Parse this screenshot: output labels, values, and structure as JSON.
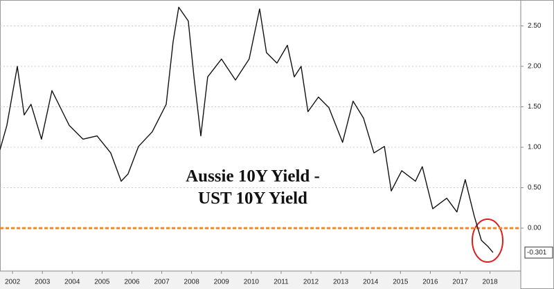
{
  "chart_data": {
    "type": "line",
    "annotation": [
      "Aussie 10Y Yield -",
      "UST 10Y Yield"
    ],
    "x": [
      2002.08,
      2002.31,
      2002.66,
      2002.89,
      2003.12,
      2003.47,
      2003.82,
      2004.17,
      2004.4,
      2004.86,
      2005.33,
      2005.79,
      2006.14,
      2006.37,
      2006.72,
      2007.18,
      2007.65,
      2007.88,
      2008.07,
      2008.39,
      2008.58,
      2008.81,
      2009.04,
      2009.5,
      2009.97,
      2010.43,
      2010.78,
      2011.01,
      2011.36,
      2011.71,
      2011.94,
      2012.17,
      2012.4,
      2012.75,
      2013.1,
      2013.56,
      2013.91,
      2014.26,
      2014.61,
      2014.96,
      2015.19,
      2015.54,
      2016.0,
      2016.23,
      2016.58,
      2017.05,
      2017.39,
      2017.67,
      2017.97,
      2018.21,
      2018.44,
      2018.6
    ],
    "series": [
      {
        "color": "#111111",
        "values": [
          0.97,
          1.27,
          2.0,
          1.4,
          1.53,
          1.1,
          1.7,
          1.44,
          1.27,
          1.1,
          1.14,
          0.93,
          0.58,
          0.67,
          1.01,
          1.19,
          1.53,
          2.3,
          2.73,
          2.56,
          1.87,
          1.14,
          1.87,
          2.09,
          1.83,
          2.09,
          2.71,
          2.17,
          2.04,
          2.26,
          1.87,
          2.0,
          1.44,
          1.62,
          1.49,
          1.06,
          1.57,
          1.36,
          0.93,
          1.01,
          0.46,
          0.71,
          0.58,
          0.76,
          0.24,
          0.37,
          0.2,
          0.6,
          0.15,
          -0.15,
          -0.23,
          -0.301
        ]
      }
    ],
    "xlim": [
      2002.08,
      2019.53
    ],
    "xticks": [
      {
        "value": 2002.5,
        "label": "2002"
      },
      {
        "value": 2003.5,
        "label": "2003"
      },
      {
        "value": 2004.5,
        "label": "2004"
      },
      {
        "value": 2005.5,
        "label": "2005"
      },
      {
        "value": 2006.5,
        "label": "2006"
      },
      {
        "value": 2007.5,
        "label": "2007"
      },
      {
        "value": 2008.5,
        "label": "2008"
      },
      {
        "value": 2009.5,
        "label": "2009"
      },
      {
        "value": 2010.5,
        "label": "2010"
      },
      {
        "value": 2011.5,
        "label": "2011"
      },
      {
        "value": 2012.5,
        "label": "2012"
      },
      {
        "value": 2013.5,
        "label": "2013"
      },
      {
        "value": 2014.5,
        "label": "2014"
      },
      {
        "value": 2015.5,
        "label": "2015"
      },
      {
        "value": 2016.5,
        "label": "2016"
      },
      {
        "value": 2017.5,
        "label": "2017"
      },
      {
        "value": 2018.5,
        "label": "2018"
      }
    ],
    "ylim": [
      -0.53,
      2.82
    ],
    "yticks": [
      {
        "value": 0,
        "label": "0.00"
      },
      {
        "value": 0.5,
        "label": "0.50"
      },
      {
        "value": 1,
        "label": "1.00"
      },
      {
        "value": 1.5,
        "label": "1.50"
      },
      {
        "value": 2,
        "label": "2.00"
      },
      {
        "value": 2.5,
        "label": "2.50"
      }
    ],
    "grid": true,
    "reference_line": {
      "value": 0,
      "color": "#f08a24"
    }
  }
}
